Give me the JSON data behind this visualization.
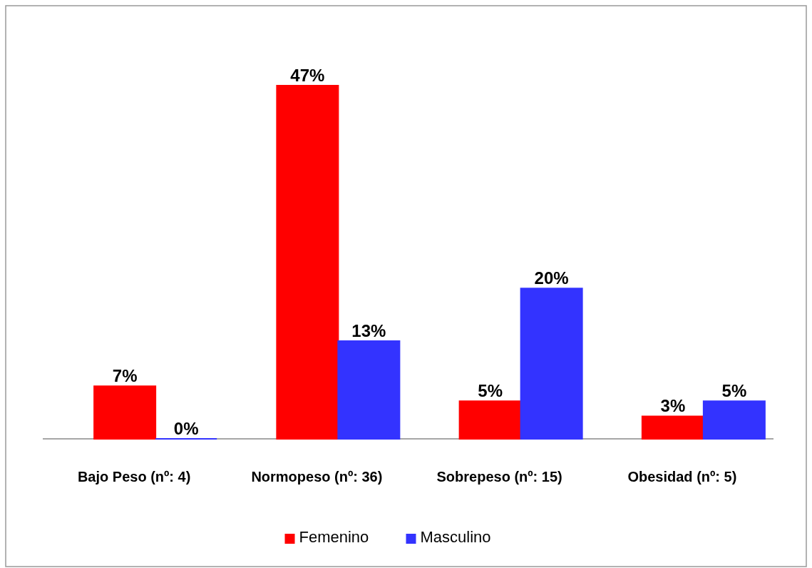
{
  "chart_data": {
    "type": "bar",
    "categories": [
      "Bajo Peso (nº: 4)",
      "Normopeso (nº: 36)",
      "Sobrepeso (nº: 15)",
      "Obesidad (nº: 5)"
    ],
    "series": [
      {
        "name": "Femenino",
        "color": "#ff0000",
        "values": [
          7,
          47,
          5,
          3
        ],
        "value_labels": [
          "7%",
          "47%",
          "5%",
          "3%"
        ]
      },
      {
        "name": "Masculino",
        "color": "#3333ff",
        "values": [
          0,
          13,
          20,
          5
        ],
        "value_labels": [
          "0%",
          "13%",
          "20%",
          "5%"
        ]
      }
    ],
    "legend": "bottom"
  }
}
